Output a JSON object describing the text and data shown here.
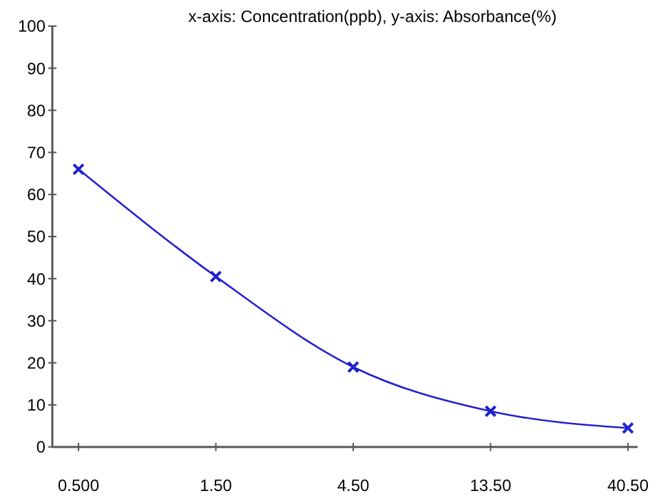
{
  "chart_data": {
    "type": "line",
    "title": "x-axis: Concentration(ppb), y-axis: Absorbance(%)",
    "categories": [
      "0.500",
      "1.50",
      "4.50",
      "13.50",
      "40.50"
    ],
    "series": [
      {
        "color": "#2020d0",
        "values": [
          66,
          40.5,
          19,
          8.5,
          4.5
        ]
      }
    ],
    "ylim": [
      0,
      100
    ],
    "yticks": [
      0,
      10,
      20,
      30,
      40,
      50,
      60,
      70,
      80,
      90,
      100
    ],
    "marker": "cross",
    "line_style": "solid",
    "grid": false
  }
}
